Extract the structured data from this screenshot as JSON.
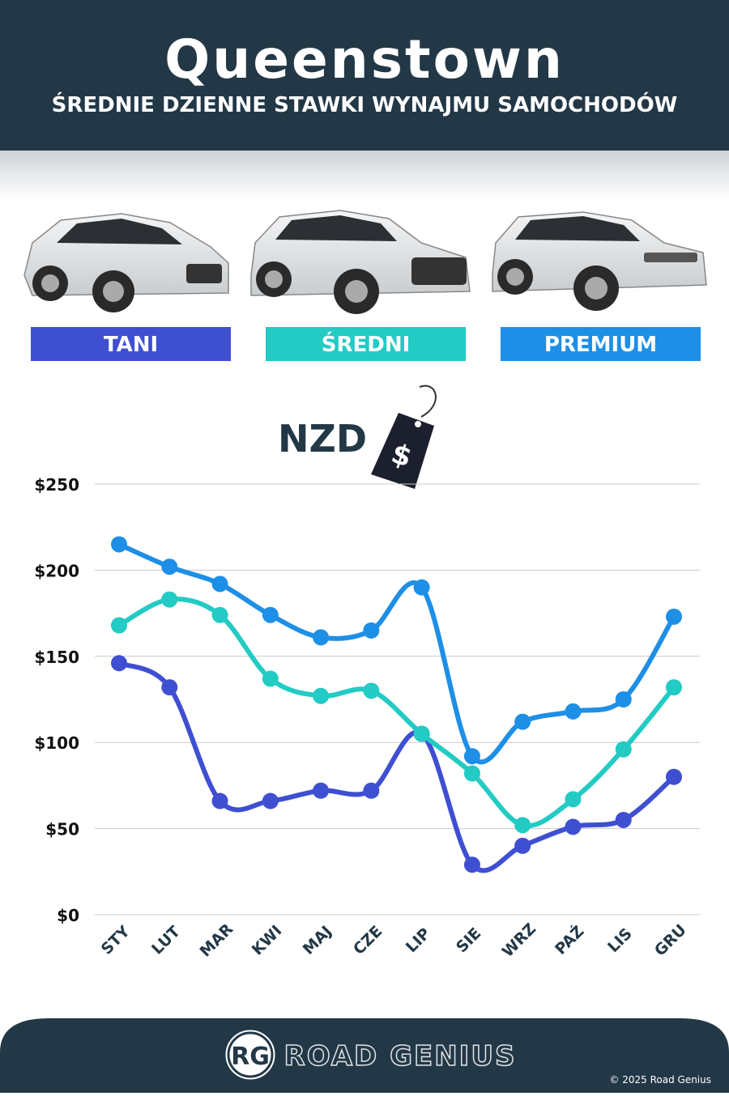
{
  "chart_data": {
    "type": "line",
    "title": "Queenstown",
    "subtitle": "ŚREDNIE DZIENNE STAWKI WYNAJMU SAMOCHODÓW",
    "currency": "NZD",
    "currency_symbol": "$",
    "categories": [
      "STY",
      "LUT",
      "MAR",
      "KWI",
      "MAJ",
      "CZE",
      "LIP",
      "SIE",
      "WRZ",
      "PAŹ",
      "LIS",
      "GRU"
    ],
    "series": [
      {
        "name": "TANI",
        "color": "#3f4fd2",
        "values": [
          146,
          132,
          66,
          66,
          72,
          72,
          105,
          29,
          40,
          51,
          55,
          80
        ]
      },
      {
        "name": "ŚREDNI",
        "color": "#22cbc4",
        "values": [
          168,
          183,
          174,
          137,
          127,
          130,
          105,
          82,
          52,
          67,
          96,
          132
        ]
      },
      {
        "name": "PREMIUM",
        "color": "#1e8fe6",
        "values": [
          215,
          202,
          192,
          174,
          161,
          165,
          190,
          92,
          112,
          118,
          125,
          173
        ]
      }
    ],
    "ylim": [
      0,
      250
    ],
    "yticks": [
      {
        "value": 0,
        "label": "$0"
      },
      {
        "value": 50,
        "label": "$50"
      },
      {
        "value": 100,
        "label": "$100"
      },
      {
        "value": 150,
        "label": "$150"
      },
      {
        "value": 200,
        "label": "$200"
      },
      {
        "value": 250,
        "label": "$250"
      }
    ],
    "grid": true,
    "brand": "ROAD GENIUS",
    "logo": "RG",
    "copyright": "© 2025 Road Genius"
  }
}
